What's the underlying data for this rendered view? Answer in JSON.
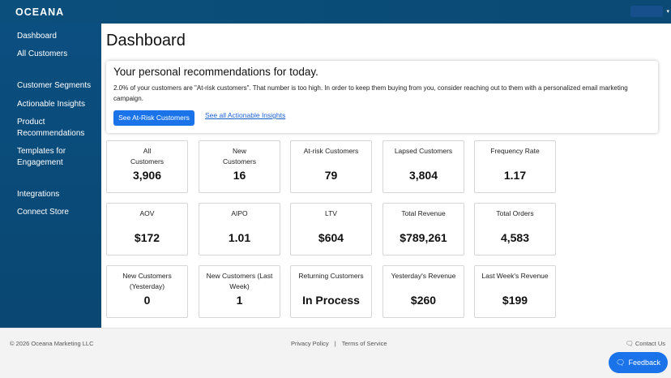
{
  "header": {
    "logo_text": "OCEANA"
  },
  "sidebar": {
    "items": [
      {
        "label": "Dashboard"
      },
      {
        "label": "All Customers"
      },
      {
        "label": "Customer Segments"
      },
      {
        "label": "Actionable Insights"
      },
      {
        "label": "Product Recommendations"
      },
      {
        "label": "Templates for Engagement"
      },
      {
        "label": "Integrations"
      },
      {
        "label": "Connect Store"
      }
    ]
  },
  "main": {
    "title": "Dashboard",
    "recommendation": {
      "title": "Your personal recommendations for today.",
      "text": "2.0% of your customers are \"At-risk customers\". That number is too high. In order to keep them buying from you, consider reaching out to them with a personalized email marketing campaign.",
      "button_label": "See At-Risk Customers",
      "link_label": "See all Actionable Insights"
    },
    "cards": [
      {
        "label": "All\nCustomers",
        "value": "3,906"
      },
      {
        "label": "New\nCustomers",
        "value": "16"
      },
      {
        "label": "At-risk Customers",
        "value": "79"
      },
      {
        "label": "Lapsed Customers",
        "value": "3,804"
      },
      {
        "label": "Frequency Rate",
        "value": "1.17"
      },
      {
        "label": "AOV",
        "value": "$172"
      },
      {
        "label": "AIPO",
        "value": "1.01"
      },
      {
        "label": "LTV",
        "value": "$604"
      },
      {
        "label": "Total Revenue",
        "value": "$789,261"
      },
      {
        "label": "Total Orders",
        "value": "4,583"
      },
      {
        "label": "New Customers (Yesterday)",
        "value": "0"
      },
      {
        "label": "New Customers (Last Week)",
        "value": "1"
      },
      {
        "label": "Returning Customers",
        "value": "In Process"
      },
      {
        "label": "Yesterday's Revenue",
        "value": "$260"
      },
      {
        "label": "Last Week's Revenue",
        "value": "$199"
      }
    ]
  },
  "footer": {
    "copyright": "© 2026 Oceana Marketing LLC",
    "privacy_label": "Privacy Policy",
    "separator": "|",
    "terms_label": "Terms of Service",
    "contact_label": "Contact Us",
    "feedback_label": "Feedback"
  },
  "colors": {
    "brand": "#0b4f7c",
    "accent": "#1a73e8"
  }
}
